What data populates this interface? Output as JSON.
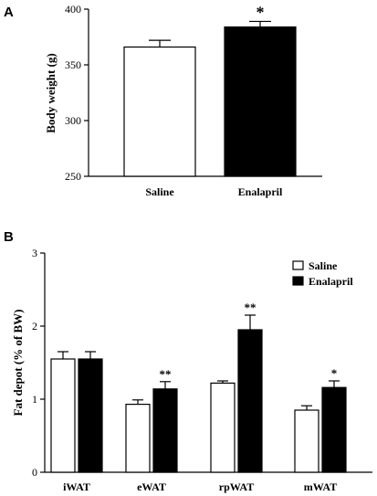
{
  "chart_data": [
    {
      "type": "bar",
      "panel_label": "A",
      "ylabel": "Body weight (g)",
      "ylim": [
        250,
        400
      ],
      "yticks": [
        250,
        300,
        350,
        400
      ],
      "categories": [
        "Saline",
        "Enalapril"
      ],
      "values": [
        366,
        384
      ],
      "errors": [
        6,
        5
      ],
      "fills": [
        "#ffffff",
        "#000000"
      ],
      "significance": [
        "",
        "*"
      ]
    },
    {
      "type": "bar",
      "panel_label": "B",
      "ylabel": "Fat depot (% of BW)",
      "ylim": [
        0,
        3
      ],
      "yticks": [
        0,
        1,
        2,
        3
      ],
      "categories": [
        "iWAT",
        "eWAT",
        "rpWAT",
        "mWAT"
      ],
      "legend_position": "top-right",
      "series": [
        {
          "name": "Saline",
          "color": "#ffffff",
          "values": [
            1.55,
            0.93,
            1.22,
            0.85
          ],
          "errors": [
            0.1,
            0.06,
            0.03,
            0.06
          ],
          "significance": [
            "",
            "",
            "",
            ""
          ]
        },
        {
          "name": "Enalapril",
          "color": "#000000",
          "values": [
            1.55,
            1.14,
            1.95,
            1.16
          ],
          "errors": [
            0.1,
            0.1,
            0.2,
            0.09
          ],
          "significance": [
            "",
            "**",
            "**",
            "*"
          ]
        }
      ]
    }
  ]
}
